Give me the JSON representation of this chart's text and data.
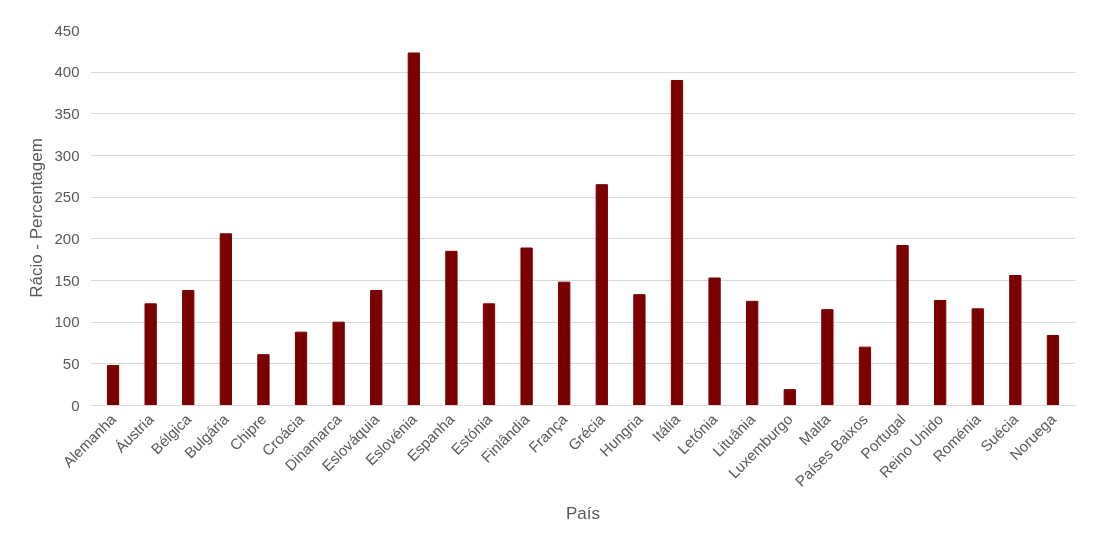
{
  "chart_data": {
    "type": "bar",
    "xlabel": "País",
    "ylabel": "Rácio - Percentagem",
    "categories": [
      "Alemanha",
      "Áustria",
      "Bélgica",
      "Bulgária",
      "Chipre",
      "Croácia",
      "Dinamarca",
      "Eslováquia",
      "Eslovénia",
      "Espanha",
      "Estónia",
      "Finlândia",
      "França",
      "Grécia",
      "Hungria",
      "Itália",
      "Letónia",
      "Lituânia",
      "Luxemburgo",
      "Malta",
      "Países Baixos",
      "Portugal",
      "Reino Unido",
      "Roménia",
      "Suécia",
      "Noruega"
    ],
    "values": [
      48,
      122,
      138,
      206,
      61,
      88,
      100,
      138,
      423,
      185,
      122,
      189,
      148,
      265,
      133,
      390,
      153,
      125,
      19,
      115,
      70,
      192,
      126,
      116,
      156,
      84
    ],
    "color": "#7b0000",
    "ylim": [
      0,
      450
    ],
    "yticks": [
      0,
      50,
      100,
      150,
      200,
      250,
      300,
      350,
      400,
      450
    ],
    "grid": "y"
  }
}
